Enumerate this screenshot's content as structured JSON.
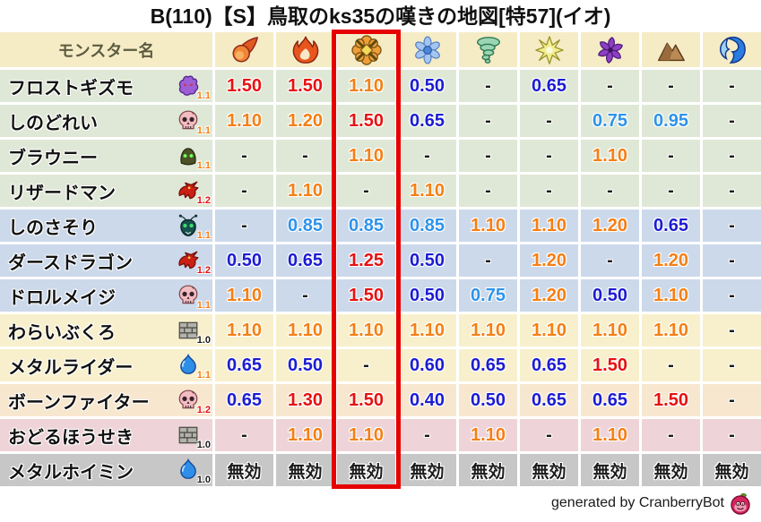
{
  "chart_data": {
    "type": "table",
    "title": "B(110)【S】鳥取のks35の嘆きの地図[特57](イオ)",
    "name_column_header": "モンスター名",
    "element_columns": [
      "fireball",
      "flame",
      "explosion",
      "snowflake",
      "tornado",
      "starburst",
      "pinwheel",
      "mountain",
      "wave"
    ],
    "highlighted_column_index": 2,
    "immune_label": "無効",
    "rows": [
      {
        "monster": "フロストギズモ",
        "icon": "ghost",
        "boost": "1.1",
        "row_tint": "green",
        "values": [
          "1.50",
          "1.50",
          "1.10",
          "0.50",
          "-",
          "0.65",
          "-",
          "-",
          "-"
        ]
      },
      {
        "monster": "しのどれい",
        "icon": "skull",
        "boost": "1.1",
        "row_tint": "green",
        "values": [
          "1.10",
          "1.20",
          "1.50",
          "0.65",
          "-",
          "-",
          "0.75",
          "0.95",
          "-"
        ]
      },
      {
        "monster": "ブラウニー",
        "icon": "hood",
        "boost": "1.1",
        "row_tint": "green",
        "values": [
          "-",
          "-",
          "1.10",
          "-",
          "-",
          "-",
          "1.10",
          "-",
          "-"
        ]
      },
      {
        "monster": "リザードマン",
        "icon": "dragon",
        "boost": "1.2",
        "row_tint": "green",
        "values": [
          "-",
          "1.10",
          "-",
          "1.10",
          "-",
          "-",
          "-",
          "-",
          "-"
        ]
      },
      {
        "monster": "しのさそり",
        "icon": "bug",
        "boost": "1.1",
        "row_tint": "blue",
        "values": [
          "-",
          "0.85",
          "0.85",
          "0.85",
          "1.10",
          "1.10",
          "1.20",
          "0.65",
          "-"
        ]
      },
      {
        "monster": "ダースドラゴン",
        "icon": "dragon",
        "boost": "1.2",
        "row_tint": "blue",
        "values": [
          "0.50",
          "0.65",
          "1.25",
          "0.50",
          "-",
          "1.20",
          "-",
          "1.20",
          "-"
        ]
      },
      {
        "monster": "ドロルメイジ",
        "icon": "skull",
        "boost": "1.1",
        "row_tint": "blue",
        "values": [
          "1.10",
          "-",
          "1.50",
          "0.50",
          "0.75",
          "1.20",
          "0.50",
          "1.10",
          "-"
        ]
      },
      {
        "monster": "わらいぶくろ",
        "icon": "brick",
        "boost": "1.0",
        "row_tint": "yellow",
        "values": [
          "1.10",
          "1.10",
          "1.10",
          "1.10",
          "1.10",
          "1.10",
          "1.10",
          "1.10",
          "-"
        ]
      },
      {
        "monster": "メタルライダー",
        "icon": "slime",
        "boost": "1.1",
        "row_tint": "yellow",
        "values": [
          "0.65",
          "0.50",
          "-",
          "0.60",
          "0.65",
          "0.65",
          "1.50",
          "-",
          "-"
        ]
      },
      {
        "monster": "ボーンファイター",
        "icon": "skull",
        "boost": "1.2",
        "row_tint": "peach",
        "values": [
          "0.65",
          "1.30",
          "1.50",
          "0.40",
          "0.50",
          "0.65",
          "0.65",
          "1.50",
          "-"
        ]
      },
      {
        "monster": "おどるほうせき",
        "icon": "brick",
        "boost": "1.0",
        "row_tint": "pink",
        "values": [
          "-",
          "1.10",
          "1.10",
          "-",
          "1.10",
          "-",
          "1.10",
          "-",
          "-"
        ]
      },
      {
        "monster": "メタルホイミン",
        "icon": "slime",
        "boost": "1.0",
        "row_tint": "gray",
        "values": [
          "無効",
          "無効",
          "無効",
          "無効",
          "無効",
          "無効",
          "無効",
          "無効",
          "無効"
        ]
      }
    ]
  },
  "footer": {
    "credit": "generated by CranberryBot",
    "icon": "cranberry-icon"
  },
  "palette": {
    "red": "#e61111",
    "orange": "#f57f14",
    "light_blue": "#2e93ea",
    "dark_blue": "#1c1cd2",
    "text_black": "#1a1a1a",
    "row_green": "#dfe8d6",
    "row_blue": "#ccd9eb",
    "row_yellow": "#f8f0cd",
    "row_peach": "#f8e7cf",
    "row_pink": "#eed4d8",
    "row_gray": "#c7c7c7",
    "header_bg": "#f5ecc6",
    "header_text": "#5c5b40",
    "highlight": "#e60000"
  }
}
